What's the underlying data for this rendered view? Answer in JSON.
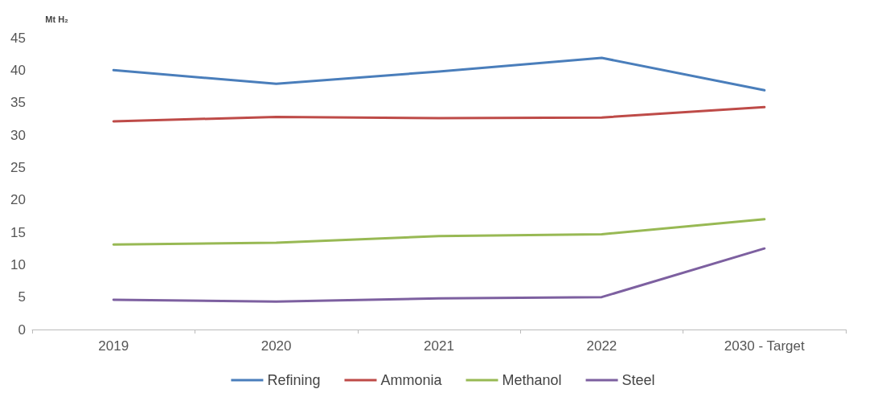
{
  "chart_data": {
    "type": "line",
    "ylabel": "Mt H₂",
    "categories": [
      "2019",
      "2020",
      "2021",
      "2022",
      "2030 - Target"
    ],
    "series": [
      {
        "name": "Refining",
        "color": "#4a7ebb",
        "values": [
          40.0,
          37.9,
          39.8,
          41.9,
          36.9
        ]
      },
      {
        "name": "Ammonia",
        "color": "#be4b48",
        "values": [
          32.1,
          32.8,
          32.6,
          32.7,
          34.3
        ]
      },
      {
        "name": "Methanol",
        "color": "#98b954",
        "values": [
          13.1,
          13.4,
          14.4,
          14.7,
          17.0
        ]
      },
      {
        "name": "Steel",
        "color": "#7d60a0",
        "values": [
          4.6,
          4.3,
          4.8,
          5.0,
          12.5
        ]
      }
    ],
    "ylim": [
      0,
      45
    ],
    "yticks": [
      0,
      5,
      10,
      15,
      20,
      25,
      30,
      35,
      40,
      45
    ],
    "grid": false,
    "legend": "bottom",
    "marker": "none",
    "line_style": "solid"
  }
}
